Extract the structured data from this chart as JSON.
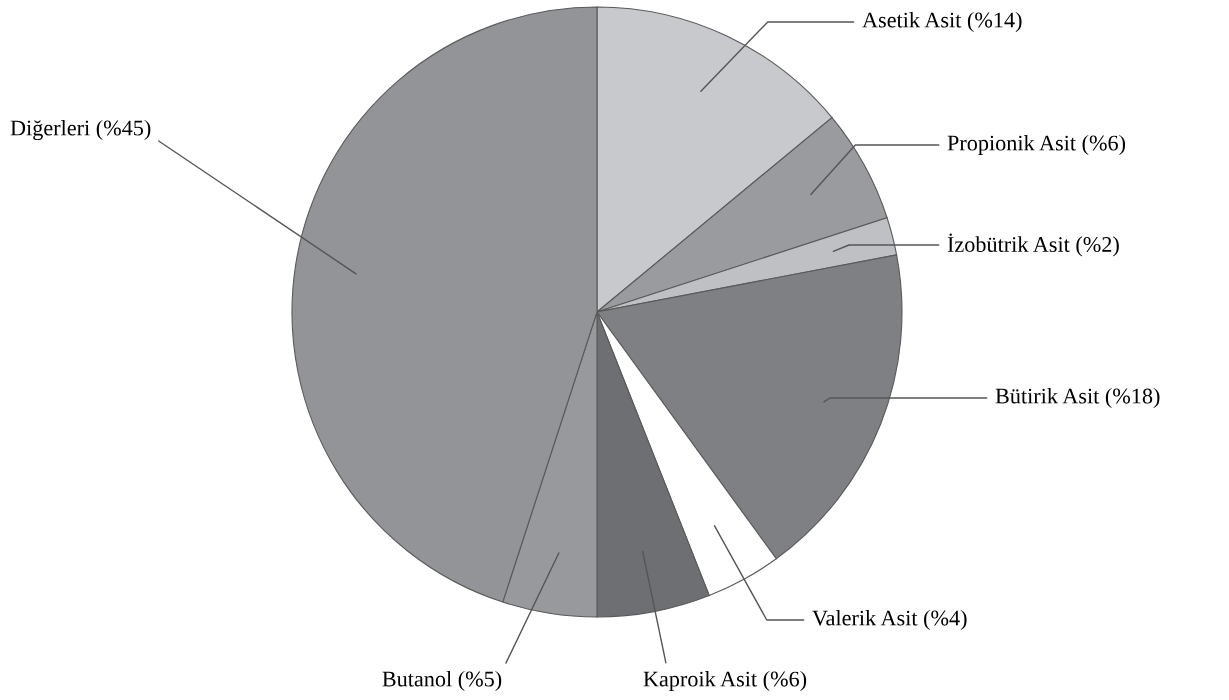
{
  "chart_data": {
    "type": "pie",
    "categories": [
      "Asetik Asit (%14)",
      "Propionik Asit (%6)",
      "İzobütrik Asit (%2)",
      "Bütirik Asit (%18)",
      "Valerik Asit (%4)",
      "Kaproik Asit (%6)",
      "Butanol (%5)",
      "Diğerleri (%45)"
    ],
    "values": [
      14,
      6,
      2,
      18,
      4,
      6,
      5,
      45
    ],
    "colors": [
      "#c8c9cc",
      "#9a9b9e",
      "#bfc0c4",
      "#7f8084",
      "#ffffff",
      "#6e6f72",
      "#98999c",
      "#939497"
    ]
  }
}
